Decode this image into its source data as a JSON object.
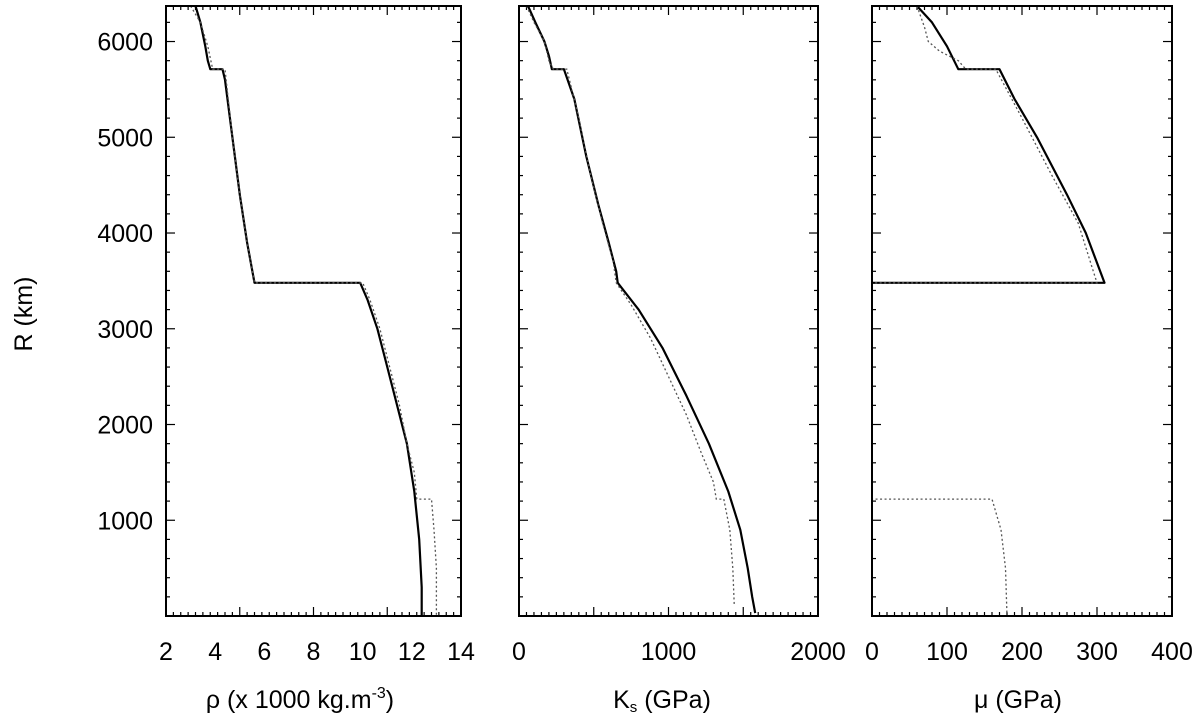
{
  "ylabel": "R (km)",
  "yticks": [
    "1000",
    "2000",
    "3000",
    "4000",
    "5000",
    "6000"
  ],
  "panels": [
    {
      "xlabel": {
        "pre": "ρ (x 1000 kg.m",
        "sup": "-3",
        "post": ")"
      },
      "xticks": [
        "2",
        "4",
        "6",
        "8",
        "10",
        "12",
        "14"
      ]
    },
    {
      "xlabel": {
        "main": "K",
        "sub": "s",
        "post": " (GPa)"
      },
      "xticks": [
        "0",
        "1000",
        "2000"
      ]
    },
    {
      "xlabel": {
        "pre": "μ (GPa)"
      },
      "xticks": [
        "0",
        "100",
        "200",
        "300",
        "400"
      ]
    }
  ],
  "chart_data": [
    {
      "type": "line",
      "xlabel": "ρ (x 1000 kg.m-3)",
      "ylabel": "R (km)",
      "xlim": [
        2,
        14
      ],
      "ylim": [
        0,
        6371
      ],
      "series": [
        {
          "style": "solid",
          "points": [
            [
              3.2,
              6371
            ],
            [
              3.4,
              6200
            ],
            [
              3.6,
              5950
            ],
            [
              3.7,
              5800
            ],
            [
              3.8,
              5711
            ],
            [
              4.3,
              5711
            ],
            [
              4.4,
              5600
            ],
            [
              4.7,
              5000
            ],
            [
              5.0,
              4400
            ],
            [
              5.3,
              3900
            ],
            [
              5.6,
              3480
            ],
            [
              9.9,
              3480
            ],
            [
              10.2,
              3300
            ],
            [
              10.6,
              3000
            ],
            [
              11.0,
              2600
            ],
            [
              11.4,
              2200
            ],
            [
              11.8,
              1800
            ],
            [
              12.1,
              1300
            ],
            [
              12.3,
              800
            ],
            [
              12.4,
              300
            ],
            [
              12.4,
              0
            ]
          ]
        },
        {
          "style": "dotted",
          "points": [
            [
              3.0,
              6371
            ],
            [
              3.4,
              6200
            ],
            [
              3.7,
              5950
            ],
            [
              3.9,
              5711
            ],
            [
              4.4,
              5711
            ],
            [
              4.7,
              5000
            ],
            [
              5.0,
              4400
            ],
            [
              5.3,
              3900
            ],
            [
              5.6,
              3480
            ],
            [
              10.0,
              3480
            ],
            [
              10.3,
              3300
            ],
            [
              10.7,
              3000
            ],
            [
              11.1,
              2600
            ],
            [
              11.5,
              2200
            ],
            [
              11.8,
              1800
            ],
            [
              12.1,
              1500
            ],
            [
              12.2,
              1221
            ],
            [
              12.8,
              1221
            ],
            [
              12.9,
              900
            ],
            [
              13.0,
              500
            ],
            [
              13.0,
              0
            ]
          ]
        }
      ]
    },
    {
      "type": "line",
      "xlabel": "Ks (GPa)",
      "ylabel": "R (km)",
      "xlim": [
        0,
        2000
      ],
      "ylim": [
        0,
        6371
      ],
      "series": [
        {
          "style": "solid",
          "points": [
            [
              60,
              6371
            ],
            [
              110,
              6200
            ],
            [
              170,
              6000
            ],
            [
              200,
              5850
            ],
            [
              220,
              5711
            ],
            [
              300,
              5711
            ],
            [
              370,
              5400
            ],
            [
              450,
              4800
            ],
            [
              530,
              4300
            ],
            [
              600,
              3900
            ],
            [
              650,
              3600
            ],
            [
              660,
              3480
            ],
            [
              800,
              3200
            ],
            [
              960,
              2800
            ],
            [
              1120,
              2300
            ],
            [
              1270,
              1800
            ],
            [
              1400,
              1300
            ],
            [
              1480,
              900
            ],
            [
              1530,
              500
            ],
            [
              1560,
              200
            ],
            [
              1580,
              30
            ]
          ]
        },
        {
          "style": "dotted",
          "points": [
            [
              50,
              6371
            ],
            [
              100,
              6200
            ],
            [
              170,
              6000
            ],
            [
              200,
              5800
            ],
            [
              230,
              5711
            ],
            [
              320,
              5711
            ],
            [
              400,
              5200
            ],
            [
              480,
              4600
            ],
            [
              560,
              4100
            ],
            [
              630,
              3700
            ],
            [
              650,
              3480
            ],
            [
              750,
              3250
            ],
            [
              880,
              2900
            ],
            [
              1000,
              2500
            ],
            [
              1120,
              2100
            ],
            [
              1220,
              1700
            ],
            [
              1300,
              1400
            ],
            [
              1320,
              1221
            ],
            [
              1370,
              1221
            ],
            [
              1410,
              900
            ],
            [
              1430,
              500
            ],
            [
              1440,
              100
            ]
          ]
        }
      ]
    },
    {
      "type": "line",
      "xlabel": "μ (GPa)",
      "ylabel": "R (km)",
      "xlim": [
        0,
        400
      ],
      "ylim": [
        0,
        6371
      ],
      "series": [
        {
          "style": "solid",
          "points": [
            [
              60,
              6371
            ],
            [
              80,
              6200
            ],
            [
              100,
              5950
            ],
            [
              115,
              5711
            ],
            [
              170,
              5711
            ],
            [
              190,
              5400
            ],
            [
              220,
              5000
            ],
            [
              260,
              4400
            ],
            [
              285,
              4000
            ],
            [
              310,
              3480
            ],
            [
              0,
              3480
            ]
          ]
        },
        {
          "style": "dotted",
          "points": [
            [
              60,
              6371
            ],
            [
              70,
              6150
            ],
            [
              75,
              6000
            ],
            [
              90,
              5900
            ],
            [
              115,
              5800
            ],
            [
              125,
              5711
            ],
            [
              165,
              5711
            ],
            [
              200,
              5200
            ],
            [
              240,
              4600
            ],
            [
              275,
              4100
            ],
            [
              295,
              3600
            ],
            [
              300,
              3480
            ],
            [
              0,
              3480
            ],
            [
              0,
              1221
            ],
            [
              160,
              1221
            ],
            [
              172,
              900
            ],
            [
              178,
              500
            ],
            [
              180,
              0
            ]
          ]
        }
      ]
    }
  ]
}
